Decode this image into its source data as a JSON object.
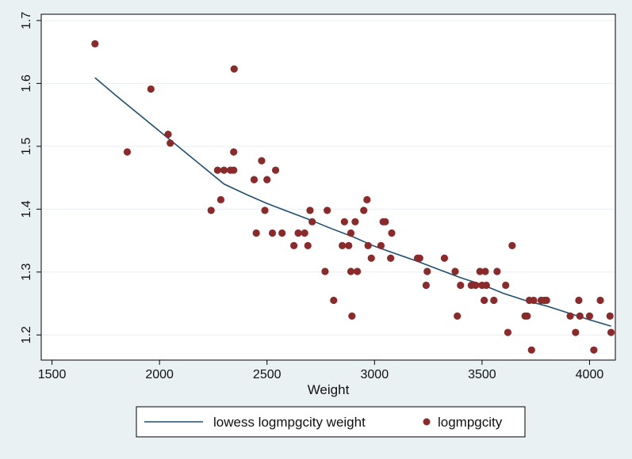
{
  "chart_data": {
    "type": "scatter",
    "xlabel": "Weight",
    "ylabel": "",
    "title": "",
    "xlim": [
      1450,
      4120
    ],
    "ylim": [
      1.16,
      1.71
    ],
    "x_ticks": [
      "1500",
      "2000",
      "2500",
      "3000",
      "3500",
      "4000"
    ],
    "y_ticks": [
      "1.2",
      "1.3",
      "1.4",
      "1.5",
      "1.6",
      "1.7"
    ],
    "grid": "horizontal",
    "legend_position": "bottom",
    "colors": {
      "background": "#eaf1f3",
      "plot_area": "#ffffff",
      "line": "#1f4e6e",
      "points": "#8b2a2a",
      "grid": "#e6eef2"
    },
    "series": [
      {
        "name": "lowess logmpgcity weight",
        "kind": "line",
        "x": [
          1700,
          1800,
          1900,
          2000,
          2100,
          2200,
          2300,
          2400,
          2500,
          2600,
          2700,
          2800,
          2900,
          3000,
          3100,
          3200,
          3300,
          3400,
          3500,
          3600,
          3700,
          3800,
          3900,
          4000,
          4100
        ],
        "y": [
          1.609,
          1.58,
          1.552,
          1.524,
          1.496,
          1.468,
          1.44,
          1.424,
          1.409,
          1.396,
          1.383,
          1.369,
          1.356,
          1.341,
          1.329,
          1.317,
          1.304,
          1.291,
          1.28,
          1.266,
          1.255,
          1.246,
          1.235,
          1.224,
          1.214
        ]
      },
      {
        "name": "logmpgcity",
        "kind": "scatter",
        "points": [
          [
            1700,
            1.663
          ],
          [
            1850,
            1.491
          ],
          [
            1960,
            1.591
          ],
          [
            2040,
            1.519
          ],
          [
            2050,
            1.505
          ],
          [
            2240,
            1.398
          ],
          [
            2270,
            1.462
          ],
          [
            2285,
            1.415
          ],
          [
            2300,
            1.462
          ],
          [
            2330,
            1.462
          ],
          [
            2345,
            1.462
          ],
          [
            2345,
            1.491
          ],
          [
            2347,
            1.623
          ],
          [
            2440,
            1.447
          ],
          [
            2450,
            1.362
          ],
          [
            2475,
            1.477
          ],
          [
            2490,
            1.398
          ],
          [
            2500,
            1.447
          ],
          [
            2525,
            1.362
          ],
          [
            2540,
            1.462
          ],
          [
            2570,
            1.362
          ],
          [
            2625,
            1.342
          ],
          [
            2645,
            1.362
          ],
          [
            2675,
            1.362
          ],
          [
            2690,
            1.342
          ],
          [
            2700,
            1.398
          ],
          [
            2710,
            1.38
          ],
          [
            2770,
            1.301
          ],
          [
            2780,
            1.398
          ],
          [
            2810,
            1.255
          ],
          [
            2850,
            1.342
          ],
          [
            2860,
            1.38
          ],
          [
            2880,
            1.342
          ],
          [
            2890,
            1.362
          ],
          [
            2890,
            1.301
          ],
          [
            2895,
            1.23
          ],
          [
            2910,
            1.38
          ],
          [
            2920,
            1.301
          ],
          [
            2950,
            1.398
          ],
          [
            2965,
            1.415
          ],
          [
            2970,
            1.342
          ],
          [
            2985,
            1.322
          ],
          [
            3030,
            1.342
          ],
          [
            3040,
            1.38
          ],
          [
            3050,
            1.38
          ],
          [
            3075,
            1.322
          ],
          [
            3080,
            1.362
          ],
          [
            3200,
            1.322
          ],
          [
            3210,
            1.322
          ],
          [
            3240,
            1.279
          ],
          [
            3245,
            1.301
          ],
          [
            3325,
            1.322
          ],
          [
            3375,
            1.301
          ],
          [
            3385,
            1.23
          ],
          [
            3400,
            1.279
          ],
          [
            3450,
            1.279
          ],
          [
            3470,
            1.279
          ],
          [
            3490,
            1.301
          ],
          [
            3500,
            1.279
          ],
          [
            3510,
            1.255
          ],
          [
            3515,
            1.301
          ],
          [
            3520,
            1.279
          ],
          [
            3555,
            1.255
          ],
          [
            3570,
            1.301
          ],
          [
            3610,
            1.279
          ],
          [
            3620,
            1.204
          ],
          [
            3640,
            1.342
          ],
          [
            3700,
            1.23
          ],
          [
            3710,
            1.23
          ],
          [
            3720,
            1.255
          ],
          [
            3730,
            1.176
          ],
          [
            3740,
            1.255
          ],
          [
            3775,
            1.255
          ],
          [
            3790,
            1.255
          ],
          [
            3800,
            1.255
          ],
          [
            3910,
            1.23
          ],
          [
            3935,
            1.204
          ],
          [
            3950,
            1.255
          ],
          [
            3955,
            1.23
          ],
          [
            4000,
            1.23
          ],
          [
            4020,
            1.176
          ],
          [
            4050,
            1.255
          ],
          [
            4095,
            1.23
          ],
          [
            4100,
            1.204
          ]
        ]
      }
    ]
  }
}
